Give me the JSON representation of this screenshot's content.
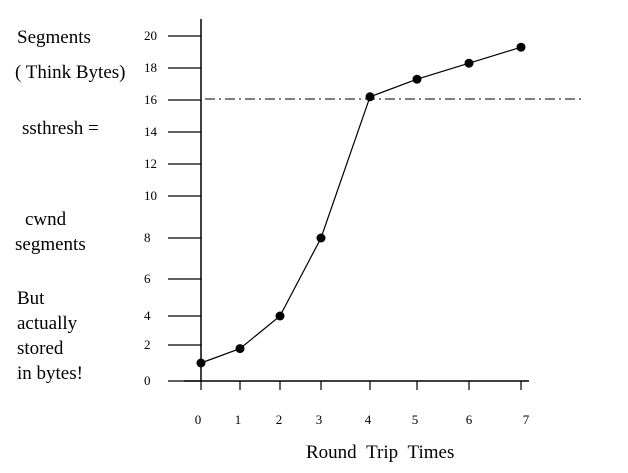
{
  "side_labels": {
    "segments": "Segments",
    "think_bytes": "( Think Bytes)",
    "ssthresh": "ssthresh =",
    "cwnd": "cwnd",
    "cwnd_segments": "segments",
    "but": "But",
    "actually": "actually",
    "stored": "stored",
    "in_bytes": "in bytes!"
  },
  "chart_data": {
    "type": "line",
    "title": "",
    "xlabel": "Round Trip Times",
    "ylabel": "Segments",
    "x": [
      0,
      1,
      2,
      3,
      4,
      5,
      6,
      7
    ],
    "series": [
      {
        "values": [
          1,
          1.8,
          4,
          8,
          16.2,
          17.3,
          18.3,
          19.3
        ]
      }
    ],
    "x_ticks": [
      0,
      1,
      2,
      3,
      4,
      5,
      6,
      7
    ],
    "y_ticks": [
      0,
      2,
      4,
      6,
      8,
      10,
      12,
      14,
      16,
      18,
      20
    ],
    "threshold": {
      "y": 16,
      "style": "dash-dot"
    },
    "xlim": [
      0,
      7
    ],
    "ylim": [
      0,
      21
    ],
    "grid": false,
    "legend": "none"
  }
}
